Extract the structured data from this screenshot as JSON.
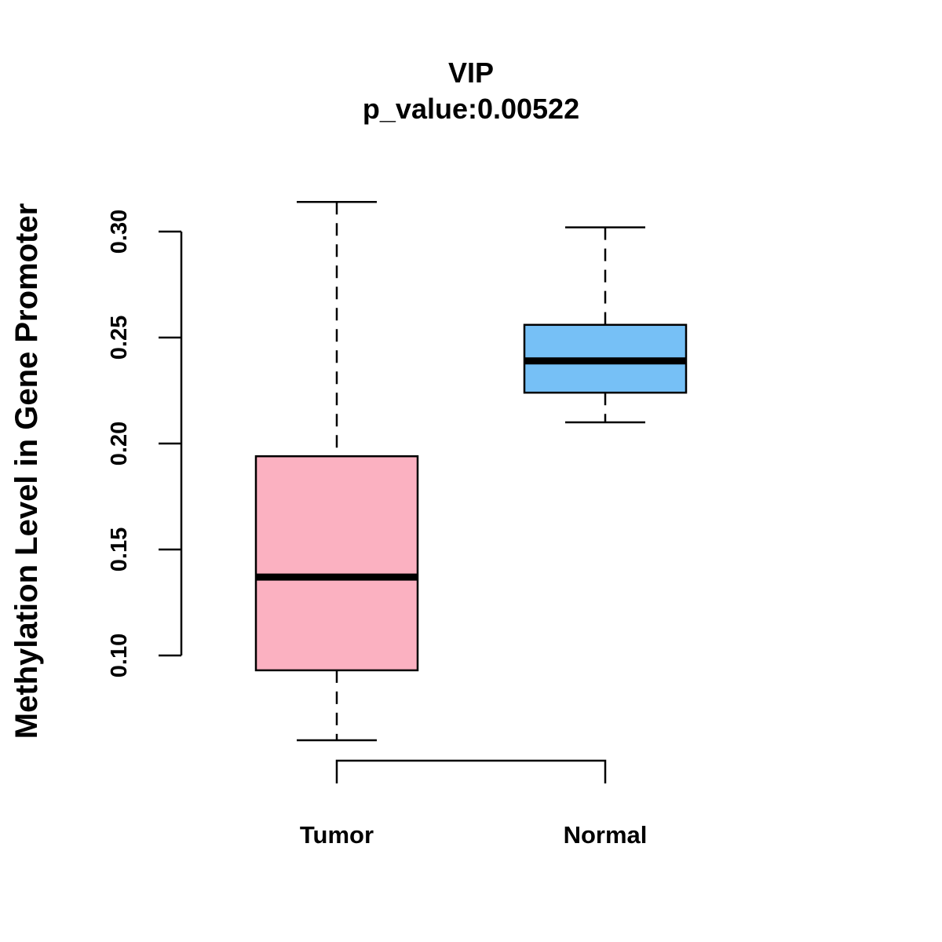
{
  "chart_data": {
    "type": "boxplot",
    "title": "VIP",
    "subtitle": "p_value:0.00522",
    "xlabel": "",
    "ylabel": "Methylation Level in Gene Promoter",
    "ylim": [
      0.05,
      0.32
    ],
    "y_ticks": [
      0.1,
      0.15,
      0.2,
      0.25,
      0.3
    ],
    "y_tick_labels": [
      "0.10",
      "0.15",
      "0.20",
      "0.25",
      "0.30"
    ],
    "categories": [
      "Tumor",
      "Normal"
    ],
    "boxes": [
      {
        "name": "Tumor",
        "whisker_low": 0.06,
        "q1": 0.093,
        "median": 0.137,
        "q3": 0.194,
        "whisker_high": 0.314,
        "color": "#FBB1C1"
      },
      {
        "name": "Normal",
        "whisker_low": 0.21,
        "q1": 0.224,
        "median": 0.239,
        "q3": 0.256,
        "whisker_high": 0.302,
        "color": "#76C0F6"
      }
    ],
    "comparison_bracket": [
      "Tumor",
      "Normal"
    ],
    "grid": false
  }
}
